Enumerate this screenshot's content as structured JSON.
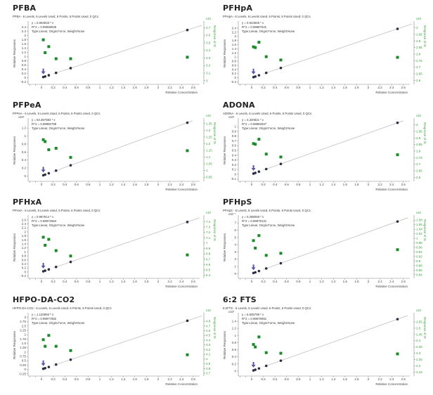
{
  "colors": {
    "points": "#2b2f44",
    "qc_squares": "#1a8a2a",
    "fit_line": "#b8b8b8",
    "right_axis": "#3aa03a",
    "arrow": "#5a55a8",
    "axis": "#888888"
  },
  "common": {
    "xlabel": "Relative Concentration",
    "ylabel": "Relative Responses",
    "ylabel_right": "Response of IS",
    "right_exponent": "x10",
    "type_line": "Type:Linear, Origin:Force, Weight:None",
    "x_ticks": [
      0,
      0.2,
      0.4,
      0.6,
      0.8,
      1,
      1.2,
      1.4,
      1.6,
      1.8,
      2,
      2.2,
      2.4,
      2.6
    ],
    "xlim": [
      -0.2,
      2.75
    ]
  },
  "chart_data": [
    {
      "type": "scatter",
      "title": "PFBA",
      "subtitle": "PFBA - 6 Levels, 6 Levels Used, 6 Points, 6 Points Used, 0 QCs",
      "equation": "y = 0.903833 * x",
      "r2": "R^2 = 0.99938536",
      "y_exponent": "",
      "slope": 0.903833,
      "x": [
        0.03125,
        0.0625,
        0.125,
        0.25,
        0.5,
        2.5
      ],
      "ylim": [
        -0.25,
        2.55
      ],
      "y_ticks": [
        -0.2,
        0,
        0.2,
        0.4,
        0.6,
        0.8,
        1,
        1.2,
        1.4,
        1.6,
        1.8,
        2,
        2.2,
        2.4
      ],
      "y2lim": [
        2.97,
        3.75
      ],
      "y2_ticks": [
        3,
        3.1,
        3.2,
        3.3,
        3.4,
        3.5,
        3.6,
        3.7
      ],
      "is_values": [
        3.54,
        3.37,
        3.45,
        3.29,
        3.29,
        3.31
      ]
    },
    {
      "type": "scatter",
      "title": "PFHpA",
      "subtitle": "PFHpA - 6 Levels, 6 Levels Used, 6 Points, 6 Points Used, 0 QCs",
      "equation": "y = 0.944848 * x",
      "r2": "R^2 = 0.99987631",
      "y_exponent": "",
      "slope": 0.944848,
      "x": [
        0.03125,
        0.0625,
        0.125,
        0.25,
        0.5,
        2.5
      ],
      "ylim": [
        -0.25,
        2.6
      ],
      "y_ticks": [
        -0.2,
        0,
        0.2,
        0.4,
        0.6,
        0.8,
        1,
        1.2,
        1.4,
        1.6,
        1.8,
        2,
        2.2,
        2.4
      ],
      "y2lim": [
        2.58,
        3.03
      ],
      "y2_ticks": [
        2.6,
        2.65,
        2.7,
        2.75,
        2.8,
        2.85,
        2.9,
        2.95,
        3
      ],
      "is_values": [
        2.855,
        2.85,
        2.89,
        2.78,
        2.755,
        2.775
      ]
    },
    {
      "type": "scatter",
      "title": "PFPeA",
      "subtitle": "PFPeA - 6 Levels, 6 Levels Used, 6 Points, 6 Points Used, 0 QCs",
      "equation": "y = 53.367883 * x",
      "r2": "R^2 = 0.99992799",
      "y_exponent": "x10²",
      "slope": 0.53367883,
      "x": [
        0.03125,
        0.0625,
        0.125,
        0.25,
        0.5,
        2.5
      ],
      "ylim": [
        -0.1,
        1.38
      ],
      "y_ticks": [
        0,
        0.2,
        0.4,
        0.6,
        0.8,
        1,
        1.2
      ],
      "y2lim": [
        0.93,
        1.37
      ],
      "y2_ticks": [
        0.95,
        1,
        1.05,
        1.1,
        1.15,
        1.2,
        1.25,
        1.3,
        1.35
      ],
      "is_values": [
        1.23,
        1.216,
        1.155,
        1.166,
        1.098,
        1.148
      ]
    },
    {
      "type": "scatter",
      "title": "ADONA",
      "subtitle": "ADONA - 6 Levels, 6 Levels Used, 6 Points, 6 Points Used, 0 QCs",
      "equation": "y = 4.320821 * x",
      "r2": "R^2 = 0.99982837",
      "y_exponent": "x10¹",
      "slope": 0.4320821,
      "x": [
        0.03125,
        0.0625,
        0.125,
        0.25,
        0.5,
        2.5
      ],
      "ylim": [
        -0.12,
        1.12
      ],
      "y_ticks": [
        -0.1,
        0,
        0.1,
        0.2,
        0.3,
        0.4,
        0.5,
        0.6,
        0.7,
        0.8,
        0.9,
        1
      ],
      "y2lim": [
        2.58,
        3.03
      ],
      "y2_ticks": [
        2.6,
        2.65,
        2.7,
        2.75,
        2.8,
        2.85,
        2.9,
        2.95,
        3
      ],
      "is_values": [
        2.857,
        2.852,
        2.89,
        2.777,
        2.755,
        2.772
      ]
    },
    {
      "type": "scatter",
      "title": "PFHxA",
      "subtitle": "PFHxA - 6 Levels, 6 Levels Used, 6 Points, 6 Points Used, 0 QCs",
      "equation": "y = 0.997814 * x",
      "r2": "R^2 = 0.99972684",
      "y_exponent": "",
      "slope": 0.997814,
      "x": [
        0.03125,
        0.0625,
        0.125,
        0.25,
        0.5,
        2.5
      ],
      "ylim": [
        -0.25,
        2.7
      ],
      "y_ticks": [
        -0.2,
        0,
        0.2,
        0.4,
        0.6,
        0.8,
        1,
        1.2,
        1.4,
        1.6,
        1.8,
        2,
        2.2,
        2.4,
        2.6
      ],
      "y2lim": [
        6.37,
        7.47
      ],
      "y2_ticks": [
        6.4,
        6.5,
        6.6,
        6.7,
        6.8,
        6.9,
        7,
        7.1,
        7.2,
        7.3,
        7.4
      ],
      "is_values": [
        7.11,
        6.96,
        7.07,
        6.86,
        6.76,
        6.78
      ]
    },
    {
      "type": "scatter",
      "title": "PFHpS",
      "subtitle": "PFHpS - 6 Levels, 6 Levels Used, 6 Points, 6 Points Used, 0 QCs",
      "equation": "y = 0.288058 * x",
      "r2": "R^2 = 0.99978131",
      "y_exponent": "x10⁻¹",
      "slope": 2.88058,
      "x": [
        0.03125,
        0.0625,
        0.125,
        0.25,
        0.5,
        2.5
      ],
      "ylim": [
        -0.45,
        7.7
      ],
      "y_ticks": [
        0,
        1,
        2,
        3,
        4,
        5,
        6,
        7
      ],
      "y2lim": [
        0.83,
        1.09
      ],
      "y2_ticks": [
        0.84,
        0.86,
        0.88,
        0.9,
        0.92,
        0.94,
        0.96,
        0.98,
        1,
        1.02,
        1.04,
        1.06,
        1.08
      ],
      "is_values": [
        0.99,
        0.957,
        1.012,
        0.925,
        0.934,
        0.95
      ]
    },
    {
      "type": "scatter",
      "title": "HFPO-DA-CO2",
      "subtitle": "HFPO-DA-CO2 - 6 Levels, 6 Levels Used, 6 Points, 6 Points Used, 0 QCs",
      "equation": "y = 1.120893 * x",
      "r2": "R^2 = 0.99977682",
      "y_exponent": "",
      "slope": 1.120893,
      "x": [
        0.03125,
        0.0625,
        0.125,
        0.25,
        0.5,
        2.5
      ],
      "ylim": [
        -0.3,
        3.1
      ],
      "y_ticks": [
        -0.25,
        0,
        0.25,
        0.5,
        0.75,
        1,
        1.25,
        1.5,
        1.75,
        2,
        2.25,
        2.5,
        2.75,
        3
      ],
      "y2lim": [
        3.67,
        4.92
      ],
      "y2_ticks": [
        3.7,
        3.8,
        3.9,
        4,
        4.1,
        4.2,
        4.3,
        4.4,
        4.5,
        4.6,
        4.7,
        4.8
      ],
      "is_values": [
        4.41,
        4.27,
        4.5,
        4.27,
        4.18,
        4.09
      ]
    },
    {
      "type": "scatter",
      "title": "6:2 FTS",
      "subtitle": "6:2FTS - 6 Levels, 6 Levels Used, 6 Points, 6 Points Used, 0 QCs",
      "equation": "y = 5.835799 * x",
      "r2": "R^2 = 0.99978091",
      "y_exponent": "x10¹",
      "slope": 0.5835799,
      "x": [
        0.03125,
        0.0625,
        0.125,
        0.25,
        0.5,
        2.5
      ],
      "ylim": [
        -0.1,
        1.56
      ],
      "y_ticks": [
        0,
        0.2,
        0.4,
        0.6,
        0.8,
        1,
        1.2,
        1.4
      ],
      "y2lim": [
        2.13,
        2.6
      ],
      "y2_ticks": [
        2.15,
        2.2,
        2.25,
        2.3,
        2.35,
        2.4,
        2.45,
        2.5,
        2.55
      ],
      "is_values": [
        2.37,
        2.35,
        2.43,
        2.305,
        2.3,
        2.295
      ]
    }
  ]
}
